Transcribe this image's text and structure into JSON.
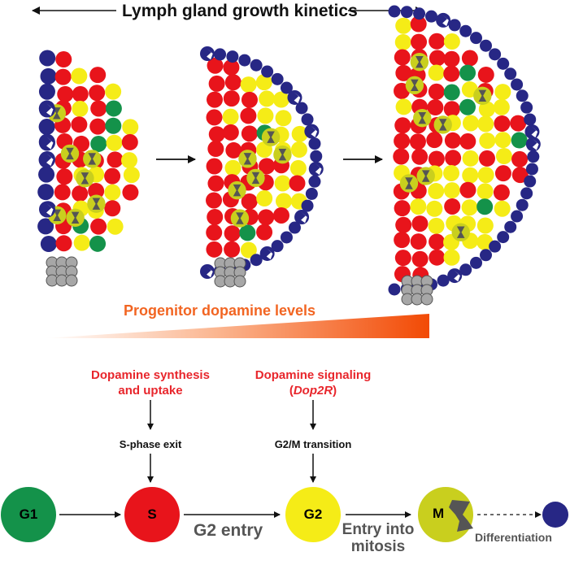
{
  "title": "Lymph gland growth kinetics",
  "gradient_label": "Progenitor dopamine levels",
  "synthesis_label_line1": "Dopamine synthesis",
  "synthesis_label_line2": "and uptake",
  "signaling_label_line1": "Dopamine signaling",
  "signaling_label_open": "(",
  "signaling_label_gene": "Dop2R",
  "signaling_label_close": ")",
  "s_phase_exit": "S-phase exit",
  "g2m_transition": "G2/M transition",
  "phases": {
    "g1": "G1",
    "s": "S",
    "g2": "G2",
    "m": "M"
  },
  "g2_entry": "G2 entry",
  "entry_mitosis_line1": "Entry into",
  "entry_mitosis_line2": "mitosis",
  "differentiation": "Differentiation",
  "colors": {
    "red": "#e8141b",
    "yellow": "#f5ec17",
    "green": "#14924a",
    "navy": "#272785",
    "olive": "#c9cf1e",
    "grey": "#a7a7a7",
    "orange": "#f26522",
    "label_red": "#e8262c"
  }
}
